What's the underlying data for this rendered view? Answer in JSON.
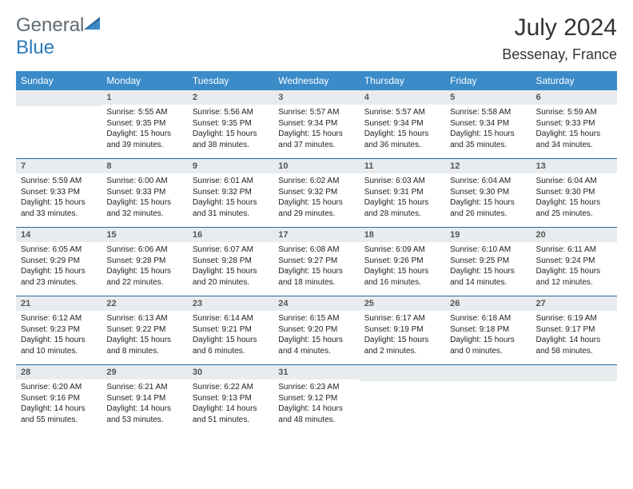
{
  "brand": {
    "text_general": "General",
    "text_blue": "Blue"
  },
  "title": {
    "month": "July 2024",
    "location": "Bessenay, France"
  },
  "colors": {
    "header_bg": "#3b8bc9",
    "row_border": "#2a6aa0",
    "daynum_bg": "#e9ecef",
    "logo_gray": "#5f6a72",
    "logo_blue": "#2a7ab9"
  },
  "weekdays": [
    "Sunday",
    "Monday",
    "Tuesday",
    "Wednesday",
    "Thursday",
    "Friday",
    "Saturday"
  ],
  "start_offset": 1,
  "days": [
    {
      "n": "1",
      "sr": "5:55 AM",
      "ss": "9:35 PM",
      "dl": "15 hours and 39 minutes."
    },
    {
      "n": "2",
      "sr": "5:56 AM",
      "ss": "9:35 PM",
      "dl": "15 hours and 38 minutes."
    },
    {
      "n": "3",
      "sr": "5:57 AM",
      "ss": "9:34 PM",
      "dl": "15 hours and 37 minutes."
    },
    {
      "n": "4",
      "sr": "5:57 AM",
      "ss": "9:34 PM",
      "dl": "15 hours and 36 minutes."
    },
    {
      "n": "5",
      "sr": "5:58 AM",
      "ss": "9:34 PM",
      "dl": "15 hours and 35 minutes."
    },
    {
      "n": "6",
      "sr": "5:59 AM",
      "ss": "9:33 PM",
      "dl": "15 hours and 34 minutes."
    },
    {
      "n": "7",
      "sr": "5:59 AM",
      "ss": "9:33 PM",
      "dl": "15 hours and 33 minutes."
    },
    {
      "n": "8",
      "sr": "6:00 AM",
      "ss": "9:33 PM",
      "dl": "15 hours and 32 minutes."
    },
    {
      "n": "9",
      "sr": "6:01 AM",
      "ss": "9:32 PM",
      "dl": "15 hours and 31 minutes."
    },
    {
      "n": "10",
      "sr": "6:02 AM",
      "ss": "9:32 PM",
      "dl": "15 hours and 29 minutes."
    },
    {
      "n": "11",
      "sr": "6:03 AM",
      "ss": "9:31 PM",
      "dl": "15 hours and 28 minutes."
    },
    {
      "n": "12",
      "sr": "6:04 AM",
      "ss": "9:30 PM",
      "dl": "15 hours and 26 minutes."
    },
    {
      "n": "13",
      "sr": "6:04 AM",
      "ss": "9:30 PM",
      "dl": "15 hours and 25 minutes."
    },
    {
      "n": "14",
      "sr": "6:05 AM",
      "ss": "9:29 PM",
      "dl": "15 hours and 23 minutes."
    },
    {
      "n": "15",
      "sr": "6:06 AM",
      "ss": "9:28 PM",
      "dl": "15 hours and 22 minutes."
    },
    {
      "n": "16",
      "sr": "6:07 AM",
      "ss": "9:28 PM",
      "dl": "15 hours and 20 minutes."
    },
    {
      "n": "17",
      "sr": "6:08 AM",
      "ss": "9:27 PM",
      "dl": "15 hours and 18 minutes."
    },
    {
      "n": "18",
      "sr": "6:09 AM",
      "ss": "9:26 PM",
      "dl": "15 hours and 16 minutes."
    },
    {
      "n": "19",
      "sr": "6:10 AM",
      "ss": "9:25 PM",
      "dl": "15 hours and 14 minutes."
    },
    {
      "n": "20",
      "sr": "6:11 AM",
      "ss": "9:24 PM",
      "dl": "15 hours and 12 minutes."
    },
    {
      "n": "21",
      "sr": "6:12 AM",
      "ss": "9:23 PM",
      "dl": "15 hours and 10 minutes."
    },
    {
      "n": "22",
      "sr": "6:13 AM",
      "ss": "9:22 PM",
      "dl": "15 hours and 8 minutes."
    },
    {
      "n": "23",
      "sr": "6:14 AM",
      "ss": "9:21 PM",
      "dl": "15 hours and 6 minutes."
    },
    {
      "n": "24",
      "sr": "6:15 AM",
      "ss": "9:20 PM",
      "dl": "15 hours and 4 minutes."
    },
    {
      "n": "25",
      "sr": "6:17 AM",
      "ss": "9:19 PM",
      "dl": "15 hours and 2 minutes."
    },
    {
      "n": "26",
      "sr": "6:18 AM",
      "ss": "9:18 PM",
      "dl": "15 hours and 0 minutes."
    },
    {
      "n": "27",
      "sr": "6:19 AM",
      "ss": "9:17 PM",
      "dl": "14 hours and 58 minutes."
    },
    {
      "n": "28",
      "sr": "6:20 AM",
      "ss": "9:16 PM",
      "dl": "14 hours and 55 minutes."
    },
    {
      "n": "29",
      "sr": "6:21 AM",
      "ss": "9:14 PM",
      "dl": "14 hours and 53 minutes."
    },
    {
      "n": "30",
      "sr": "6:22 AM",
      "ss": "9:13 PM",
      "dl": "14 hours and 51 minutes."
    },
    {
      "n": "31",
      "sr": "6:23 AM",
      "ss": "9:12 PM",
      "dl": "14 hours and 48 minutes."
    }
  ],
  "labels": {
    "sunrise": "Sunrise:",
    "sunset": "Sunset:",
    "daylight": "Daylight:"
  }
}
